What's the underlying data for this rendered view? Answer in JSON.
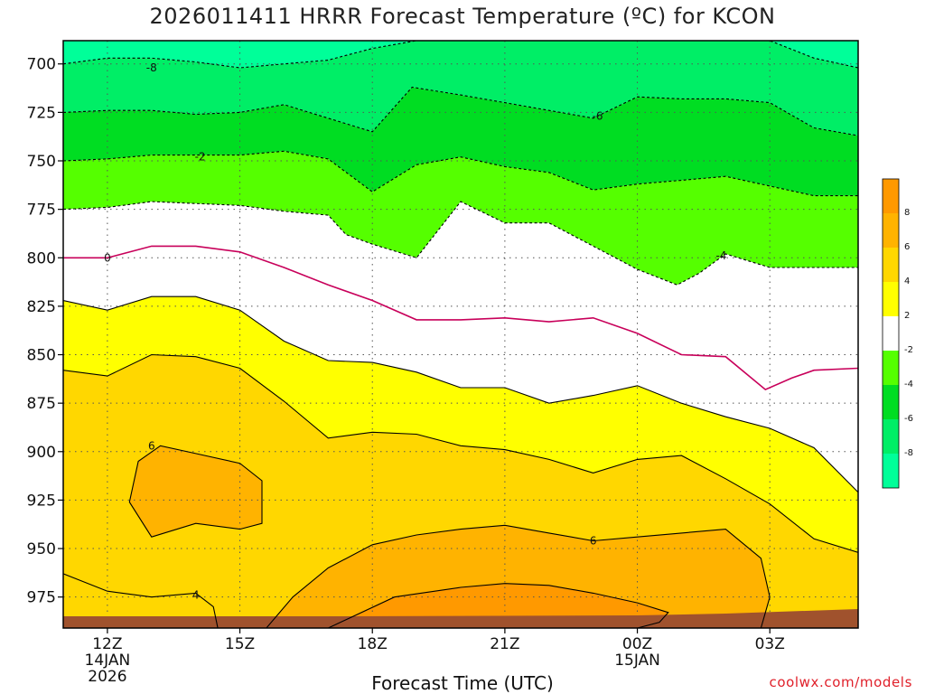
{
  "chart_data": {
    "type": "filled-contour",
    "title": "2026011411 HRRR Forecast Temperature (ºC) for KCON",
    "xlabel": "Forecast Time (UTC)",
    "ylabel": "",
    "credit": "coolwx.com/models",
    "x_range_hours": [
      -1,
      17
    ],
    "y_range_hpa": [
      688,
      991
    ],
    "y_ticks": [
      700,
      725,
      750,
      775,
      800,
      825,
      850,
      875,
      900,
      925,
      950,
      975
    ],
    "x_ticks": [
      {
        "hour": 0,
        "lines": [
          "12Z",
          "14JAN",
          "2026"
        ]
      },
      {
        "hour": 3,
        "lines": [
          "15Z"
        ]
      },
      {
        "hour": 6,
        "lines": [
          "18Z"
        ]
      },
      {
        "hour": 9,
        "lines": [
          "21Z"
        ]
      },
      {
        "hour": 12,
        "lines": [
          "00Z",
          "15JAN"
        ]
      },
      {
        "hour": 15,
        "lines": [
          "03Z"
        ]
      }
    ],
    "grid": true,
    "ground_color": "#a0522d",
    "colorbar": {
      "placement": "right",
      "levels": [
        {
          "label": "8",
          "color": "#ff9900"
        },
        {
          "label": "6",
          "color": "#ffb300"
        },
        {
          "label": "4",
          "color": "#ffd700"
        },
        {
          "label": "2",
          "color": "#ffff00"
        },
        {
          "label": "-2",
          "color": "#ffffff"
        },
        {
          "label": "-4",
          "color": "#55ff00"
        },
        {
          "label": "-6",
          "color": "#00dd22"
        },
        {
          "label": "-8",
          "color": "#00ee66"
        },
        {
          "label": "",
          "color": "#00ff99"
        }
      ]
    },
    "isotherms": [
      {
        "value": -8,
        "color": "#000000",
        "dashed": true,
        "label": "-8",
        "points": [
          [
            -1,
            700
          ],
          [
            0,
            697
          ],
          [
            1,
            697
          ],
          [
            2,
            699
          ],
          [
            3,
            702
          ],
          [
            4,
            700
          ],
          [
            5,
            698
          ],
          [
            6,
            692
          ],
          [
            7,
            688
          ],
          [
            8,
            688
          ],
          [
            9,
            688
          ],
          [
            10,
            688
          ],
          [
            11,
            688
          ],
          [
            12,
            688
          ],
          [
            13,
            688
          ],
          [
            14,
            688
          ],
          [
            15,
            688
          ],
          [
            16,
            697
          ],
          [
            17,
            702
          ]
        ],
        "label_at": [
          1.0,
          702
        ]
      },
      {
        "value": -6,
        "color": "#000000",
        "dashed": true,
        "label": "-6",
        "points": [
          [
            -1,
            725
          ],
          [
            0,
            724
          ],
          [
            1,
            724
          ],
          [
            2,
            726
          ],
          [
            3,
            725
          ],
          [
            4,
            721
          ],
          [
            5,
            728
          ],
          [
            6,
            735
          ],
          [
            6.9,
            712
          ],
          [
            8,
            716
          ],
          [
            9,
            720
          ],
          [
            10,
            724
          ],
          [
            11,
            728
          ],
          [
            12,
            717
          ],
          [
            13,
            718
          ],
          [
            14,
            718
          ],
          [
            15,
            720
          ],
          [
            16,
            733
          ],
          [
            17,
            737
          ]
        ],
        "label_at": [
          11.1,
          727
        ]
      },
      {
        "value": -4,
        "color": "#000000",
        "dashed": true,
        "label": "-4",
        "points": [
          [
            -1,
            775
          ],
          [
            0,
            774
          ],
          [
            1,
            771
          ],
          [
            2,
            772
          ],
          [
            3,
            773
          ],
          [
            4,
            776
          ],
          [
            5,
            778
          ],
          [
            5.4,
            788
          ],
          [
            6,
            793
          ],
          [
            7,
            800
          ],
          [
            8,
            771
          ],
          [
            9,
            782
          ],
          [
            10,
            782
          ],
          [
            11,
            794
          ],
          [
            12,
            806
          ],
          [
            12.9,
            814
          ],
          [
            13.4,
            808
          ],
          [
            14,
            798
          ],
          [
            15,
            805
          ],
          [
            16,
            805
          ],
          [
            17,
            805
          ]
        ],
        "label_at": [
          13.9,
          799
        ]
      },
      {
        "value": -2,
        "color": "#000000",
        "dashed": true,
        "label": "-2",
        "points": [
          [
            -1,
            750
          ],
          [
            0,
            749
          ],
          [
            1,
            747
          ],
          [
            2,
            747
          ],
          [
            3,
            747
          ],
          [
            4,
            745
          ],
          [
            5,
            749
          ],
          [
            6,
            766
          ],
          [
            7,
            752
          ],
          [
            8,
            748
          ],
          [
            9,
            753
          ],
          [
            10,
            756
          ],
          [
            11,
            765
          ],
          [
            12,
            762
          ],
          [
            13,
            760
          ],
          [
            14,
            758
          ],
          [
            15,
            763
          ],
          [
            16,
            768
          ],
          [
            17,
            768
          ]
        ],
        "label_at": [
          2.1,
          748
        ]
      },
      {
        "value": 0,
        "color": "#c8005a",
        "dashed": false,
        "label": "0",
        "points": [
          [
            -1,
            800
          ],
          [
            0,
            800
          ],
          [
            1,
            794
          ],
          [
            2,
            794
          ],
          [
            3,
            797
          ],
          [
            4,
            805
          ],
          [
            5,
            814
          ],
          [
            6,
            822
          ],
          [
            7,
            832
          ],
          [
            8,
            832
          ],
          [
            9,
            831
          ],
          [
            10,
            833
          ],
          [
            11,
            831
          ],
          [
            12,
            839
          ],
          [
            13,
            850
          ],
          [
            14,
            851
          ],
          [
            14.9,
            868
          ],
          [
            15.5,
            862
          ],
          [
            16,
            858
          ],
          [
            17,
            857
          ]
        ],
        "label_at": [
          0.0,
          800
        ]
      },
      {
        "value": 2,
        "color": "#000000",
        "dashed": false,
        "label": "",
        "points": [
          [
            -1,
            822
          ],
          [
            0,
            827
          ],
          [
            1,
            820
          ],
          [
            2,
            820
          ],
          [
            3,
            827
          ],
          [
            4,
            843
          ],
          [
            5,
            853
          ],
          [
            6,
            854
          ],
          [
            7,
            859
          ],
          [
            8,
            867
          ],
          [
            9,
            867
          ],
          [
            10,
            875
          ],
          [
            11,
            871
          ],
          [
            12,
            866
          ],
          [
            13,
            875
          ],
          [
            14,
            882
          ],
          [
            15,
            888
          ],
          [
            16,
            898
          ],
          [
            17,
            921
          ]
        ]
      },
      {
        "value": 4,
        "color": "#000000",
        "dashed": false,
        "label": "",
        "points": [
          [
            -1,
            858
          ],
          [
            0,
            861
          ],
          [
            1,
            850
          ],
          [
            2,
            851
          ],
          [
            3,
            857
          ],
          [
            4,
            874
          ],
          [
            5,
            893
          ],
          [
            6,
            890
          ],
          [
            7,
            891
          ],
          [
            8,
            897
          ],
          [
            9,
            899
          ],
          [
            10,
            904
          ],
          [
            11,
            911
          ],
          [
            12,
            904
          ],
          [
            13,
            902
          ],
          [
            14,
            914
          ],
          [
            15,
            927
          ],
          [
            16,
            945
          ],
          [
            17,
            952
          ]
        ]
      },
      {
        "value": 6,
        "color": "#000000",
        "dashed": false,
        "label": "6",
        "points": [
          [
            0.7,
            905
          ],
          [
            1.2,
            897
          ],
          [
            2,
            901
          ],
          [
            3,
            906
          ],
          [
            3.5,
            915
          ],
          [
            3.5,
            937
          ],
          [
            3,
            940
          ],
          [
            2,
            937
          ],
          [
            1,
            944
          ],
          [
            0.5,
            926
          ],
          [
            0.7,
            905
          ]
        ],
        "label_at": [
          1.0,
          897
        ]
      },
      {
        "value": 6,
        "color": "#000000",
        "dashed": false,
        "label": "6",
        "points": [
          [
            3.6,
            991
          ],
          [
            4.2,
            975
          ],
          [
            5,
            960
          ],
          [
            6,
            948
          ],
          [
            7,
            943
          ],
          [
            8,
            940
          ],
          [
            9,
            938
          ],
          [
            10,
            942
          ],
          [
            11,
            946
          ],
          [
            12,
            944
          ],
          [
            13,
            942
          ],
          [
            14,
            940
          ],
          [
            14.8,
            955
          ],
          [
            15,
            975
          ],
          [
            14.8,
            991
          ]
        ],
        "label_at": [
          11.0,
          946
        ]
      },
      {
        "value": 8,
        "color": "#000000",
        "dashed": false,
        "label": "",
        "points": [
          [
            5,
            991
          ],
          [
            6.5,
            975
          ],
          [
            8,
            970
          ],
          [
            9,
            968
          ],
          [
            10,
            969
          ],
          [
            11,
            973
          ],
          [
            12,
            978
          ],
          [
            12.7,
            983
          ],
          [
            12.5,
            988
          ],
          [
            12,
            991
          ]
        ]
      },
      {
        "value": 4,
        "color": "#000000",
        "dashed": false,
        "label": "4",
        "points": [
          [
            -1,
            963
          ],
          [
            0,
            972
          ],
          [
            1,
            975
          ],
          [
            2,
            973
          ],
          [
            2.4,
            980
          ],
          [
            2.5,
            991
          ]
        ],
        "label_at": [
          2.0,
          974
        ]
      }
    ]
  }
}
